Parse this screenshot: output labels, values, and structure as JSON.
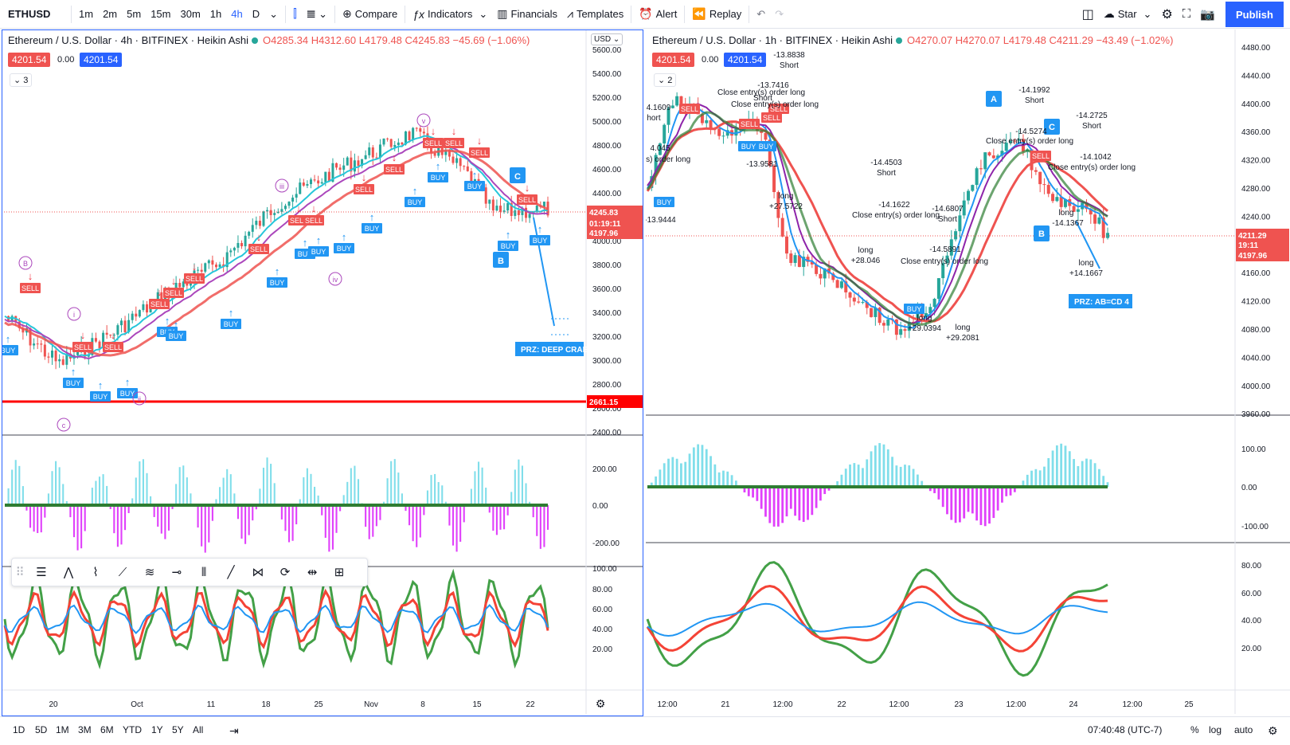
{
  "toolbar": {
    "symbol": "ETHUSD",
    "intervals": [
      "1m",
      "2m",
      "5m",
      "15m",
      "30m",
      "1h",
      "4h",
      "D"
    ],
    "active_interval": "4h",
    "compare": "Compare",
    "indicators": "Indicators",
    "financials": "Financials",
    "templates": "Templates",
    "alert": "Alert",
    "replay": "Replay",
    "layout_name": "Star",
    "publish": "Publish"
  },
  "left_chart": {
    "title": "Ethereum / U.S. Dollar · 4h · BITFINEX · Heikin Ashi",
    "ohlc": "O4285.34 H4312.60 L4179.48 C4245.83 −45.69 (−1.06%)",
    "sell_price": "4201.54",
    "spread": "0.00",
    "buy_price": "4201.54",
    "indicator_count": "3",
    "currency": "USD",
    "price_axis": [
      "5600.00",
      "5400.00",
      "5200.00",
      "5000.00",
      "4800.00",
      "4600.00",
      "4400.00",
      "4200.00",
      "4000.00",
      "3800.00",
      "3600.00",
      "3400.00",
      "3200.00",
      "3000.00",
      "2800.00",
      "2600.00",
      "2400.00"
    ],
    "last_price": "4245.83",
    "countdown": "01:19:11",
    "level_4197": "4197.96",
    "support_price": "2661.15",
    "prz_label": "PRZ: DEEP CRAB",
    "time_axis": [
      "20",
      "Oct",
      "11",
      "18",
      "25",
      "Nov",
      "8",
      "15",
      "22"
    ],
    "osc_axis": [
      "200.00",
      "0.00",
      "-200.00"
    ],
    "rsi_axis": [
      "100.00",
      "80.00",
      "60.00",
      "40.00",
      "20.00"
    ]
  },
  "right_chart": {
    "title": "Ethereum / U.S. Dollar · 1h · BITFINEX · Heikin Ashi",
    "ohlc": "O4270.07 H4270.07 L4179.48 C4211.29 −43.49 (−1.02%)",
    "sell_price": "4201.54",
    "spread": "0.00",
    "buy_price": "4201.54",
    "indicator_count": "2",
    "price_axis": [
      "4480.00",
      "4440.00",
      "4400.00",
      "4360.00",
      "4320.00",
      "4280.00",
      "4240.00",
      "4200.00",
      "4160.00",
      "4120.00",
      "4080.00",
      "4040.00",
      "4000.00",
      "3960.00"
    ],
    "last_price": "4211.29",
    "countdown": "19:11",
    "level_4197": "4197.96",
    "prz_label": "PRZ: AB=CD 4",
    "time_axis": [
      "12:00",
      "21",
      "12:00",
      "22",
      "12:00",
      "23",
      "12:00",
      "24",
      "12:00",
      "25"
    ],
    "osc_axis": [
      "100.00",
      "0.00",
      "-100.00"
    ],
    "rsi_axis": [
      "80.00",
      "60.00",
      "40.00",
      "20.00"
    ]
  },
  "annotations_left": [
    "SELL",
    "BUY",
    "B",
    "C",
    "(i)",
    "(iii)",
    "(iv)",
    "(v)",
    "(ii)",
    "(c)"
  ],
  "annotations_right": [
    "-13.7416",
    "Short",
    "-13.8838",
    "Short",
    "Close entry(s) order long",
    "-14.4503",
    "Short",
    "-14.1622",
    "Close entry(s) order long",
    "-14.6807",
    "Short",
    "-14.5891",
    "Close entry(s) order long",
    "-14.1992",
    "Short",
    "-14.5274",
    "Close entry(s) order long",
    "-14.2725",
    "Short",
    "-14.1042",
    "Close entry(s) order long",
    "long",
    "+27.5722",
    "long",
    "+28.046",
    "long",
    "+29.0394",
    "long",
    "+29.2081",
    "long",
    "-14.1367",
    "long",
    "+14.1667",
    "-13.9581",
    "-13.9444",
    "4.1609",
    "hort",
    "4.045",
    "y(s) order long",
    "A",
    "B",
    "C"
  ],
  "bottom": {
    "ranges": [
      "1D",
      "5D",
      "1M",
      "3M",
      "6M",
      "YTD",
      "1Y",
      "5Y",
      "All"
    ],
    "clock": "07:40:48 (UTC-7)",
    "percent": "%",
    "log": "log",
    "auto": "auto"
  },
  "colors": {
    "accent": "#2962ff",
    "up": "#26a69a",
    "down": "#ef5350",
    "sell_tag": "#ef5350",
    "buy_tag": "#2962ff",
    "label_blue": "#2196f3",
    "support_red": "#ff0000"
  }
}
